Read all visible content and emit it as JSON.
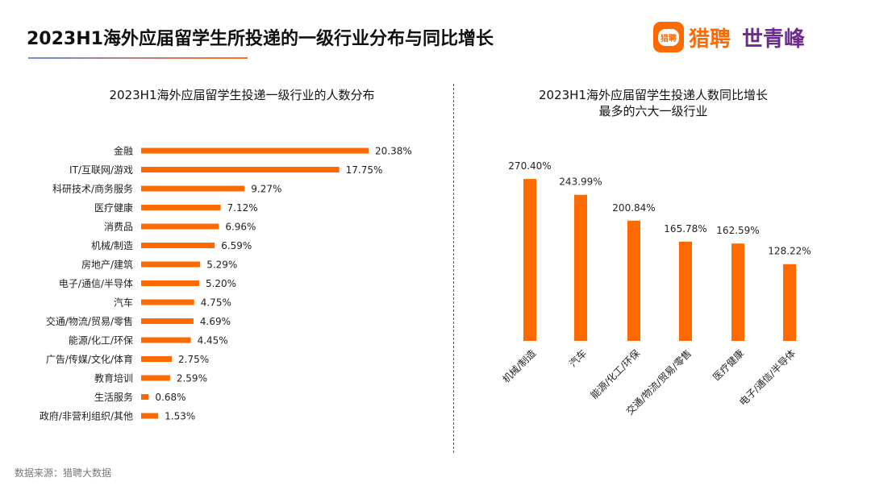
{
  "header": {
    "title": "2023H1海外应届留学生所投递的一级行业分布与同比增长",
    "logo_liepin": "猎聘",
    "logo_liepin_icon": "猎聘",
    "logo_partner": "世青峰"
  },
  "source": "数据来源：猎聘大数据",
  "chart_data": [
    {
      "type": "bar",
      "orientation": "horizontal",
      "title": "2023H1海外应届留学生投递一级行业的人数分布",
      "categories": [
        "金融",
        "IT/互联网/游戏",
        "科研技术/商务服务",
        "医疗健康",
        "消费品",
        "机械/制造",
        "房地产/建筑",
        "电子/通信/半导体",
        "汽车",
        "交通/物流/贸易/零售",
        "能源/化工/环保",
        "广告/传媒/文化/体育",
        "教育培训",
        "生活服务",
        "政府/非营利组织/其他"
      ],
      "values": [
        20.38,
        17.75,
        9.27,
        7.12,
        6.96,
        6.59,
        5.29,
        5.2,
        4.75,
        4.69,
        4.45,
        2.75,
        2.59,
        0.68,
        1.53
      ],
      "data_labels": [
        "20.38%",
        "17.75%",
        "9.27%",
        "7.12%",
        "6.96%",
        "6.59%",
        "5.29%",
        "5.20%",
        "4.75%",
        "4.69%",
        "4.45%",
        "2.75%",
        "2.59%",
        "0.68%",
        "1.53%"
      ],
      "unit": "%",
      "color": "#ff6a00",
      "grid": false
    },
    {
      "type": "bar",
      "orientation": "vertical",
      "title_lines": [
        "2023H1海外应届留学生投递人数同比增长",
        "最多的六大一级行业"
      ],
      "categories": [
        "机械/制造",
        "汽车",
        "能源/化工/环保",
        "交通/物流/贸易/零售",
        "医疗健康",
        "电子/通信/半导体"
      ],
      "values": [
        270.4,
        243.99,
        200.84,
        165.78,
        162.59,
        128.22
      ],
      "data_labels": [
        "270.40%",
        "243.99%",
        "200.84%",
        "165.78%",
        "162.59%",
        "128.22%"
      ],
      "unit": "%",
      "color": "#ff6a00",
      "grid": false
    }
  ]
}
